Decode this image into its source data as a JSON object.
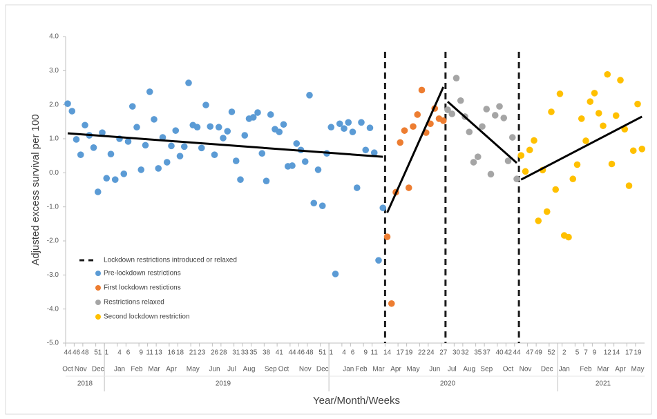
{
  "chart_data": {
    "type": "scatter",
    "x_label": "Year/Month/Weeks",
    "y_label": "Adjusted excess survival per 100",
    "categories": [
      "44",
      null,
      "46",
      null,
      "48",
      null,
      null,
      "51",
      null,
      "1",
      null,
      null,
      "4",
      null,
      "6",
      null,
      null,
      "9",
      null,
      "11",
      null,
      "13",
      null,
      null,
      "16",
      null,
      "18",
      null,
      null,
      "21",
      null,
      "23",
      null,
      null,
      "26",
      null,
      "28",
      null,
      null,
      "31",
      null,
      "33",
      null,
      "35",
      null,
      null,
      "38",
      null,
      null,
      "41",
      null,
      null,
      "44",
      null,
      "46",
      null,
      "48",
      null,
      null,
      "51",
      null,
      "1",
      null,
      null,
      "4",
      null,
      "6",
      null,
      null,
      "9",
      null,
      "11",
      null,
      null,
      "14",
      null,
      null,
      "17",
      null,
      "19",
      null,
      null,
      "22",
      null,
      "24",
      null,
      null,
      "27",
      null,
      null,
      "30",
      null,
      "32",
      null,
      null,
      "35",
      null,
      "37",
      null,
      null,
      "40",
      null,
      "42",
      null,
      "44",
      null,
      null,
      "47",
      null,
      "49",
      null,
      null,
      "52",
      null,
      null,
      "2",
      null,
      null,
      "5",
      null,
      "7",
      null,
      "9",
      null,
      null,
      "12",
      null,
      "14",
      null,
      null,
      "17",
      null,
      "19",
      null
    ],
    "months": [
      "Oct",
      "Nov",
      "Dec",
      "Jan",
      "Feb",
      "Mar",
      "Apr",
      "May",
      "Jun",
      "Jul",
      "Aug",
      "Sep",
      "Oct",
      "Nov",
      "Dec",
      "Jan",
      "Feb",
      "Mar",
      "Apr",
      "May",
      "Jun",
      "Jul",
      "Aug",
      "Sep",
      "Oct",
      "Nov",
      "Dec",
      "Jan",
      "Feb",
      "Mar",
      "Apr",
      "May"
    ],
    "years": [
      "2018",
      "2019",
      "2020",
      "2021"
    ],
    "ylim": [
      -5,
      4
    ],
    "yticks": [
      {
        "value": 4,
        "label": "4.0"
      },
      {
        "value": 3,
        "label": "3.0"
      },
      {
        "value": 2,
        "label": "2.0"
      },
      {
        "value": 1,
        "label": "1.0"
      },
      {
        "value": 0,
        "label": "0.0"
      },
      {
        "value": -1,
        "label": "-1.0"
      },
      {
        "value": -2,
        "label": "-2.0"
      },
      {
        "value": -3,
        "label": "-3.0"
      },
      {
        "value": -4,
        "label": "-4.0"
      },
      {
        "value": -5,
        "label": "-5.0"
      }
    ],
    "grid": false,
    "legend": "lower left",
    "marker_label": "Lockdown restrictions introduced or relaxed",
    "series": [
      {
        "name": "Pre-lockdown restrictions",
        "color": "#5b9bd5",
        "trend": [
          1.16,
          0.47
        ],
        "values": [
          2.03,
          1.81,
          0.98,
          0.53,
          1.4,
          1.1,
          0.74,
          -0.56,
          1.18,
          -0.16,
          0.55,
          -0.2,
          1.0,
          -0.03,
          0.92,
          1.95,
          1.34,
          0.09,
          0.81,
          2.38,
          1.57,
          0.13,
          1.04,
          0.31,
          0.79,
          1.24,
          0.49,
          0.77,
          2.64,
          1.4,
          1.34,
          0.73,
          1.99,
          1.36,
          0.53,
          1.34,
          1.02,
          1.22,
          1.79,
          0.35,
          -0.2,
          1.1,
          1.59,
          1.63,
          1.77,
          0.57,
          -0.24,
          1.71,
          1.28,
          1.2,
          1.42,
          0.19,
          0.21,
          0.86,
          0.67,
          0.33,
          2.28,
          -0.89,
          0.09,
          -0.97,
          0.57,
          1.34,
          -2.97,
          1.44,
          1.3,
          1.48,
          1.2,
          -0.44,
          1.48,
          0.67,
          1.32,
          0.59,
          -2.57,
          -1.03,
          null,
          null,
          null,
          null,
          null,
          null,
          null,
          null,
          null,
          null,
          null,
          null,
          null,
          null,
          null,
          null,
          null,
          null,
          null,
          null,
          null,
          null,
          null,
          null,
          null,
          null,
          null,
          null,
          null,
          null,
          null,
          null,
          null,
          null,
          null,
          null,
          null,
          null,
          null,
          null,
          null,
          null,
          null,
          null,
          null,
          null,
          null,
          null,
          null,
          null,
          null,
          null,
          null,
          null,
          null,
          null,
          null,
          null,
          null,
          null
        ]
      },
      {
        "name": "First lockdown restictions",
        "color": "#ed7d31",
        "trend": [
          -1.17,
          2.52
        ],
        "values": [
          null,
          null,
          null,
          null,
          null,
          null,
          null,
          null,
          null,
          null,
          null,
          null,
          null,
          null,
          null,
          null,
          null,
          null,
          null,
          null,
          null,
          null,
          null,
          null,
          null,
          null,
          null,
          null,
          null,
          null,
          null,
          null,
          null,
          null,
          null,
          null,
          null,
          null,
          null,
          null,
          null,
          null,
          null,
          null,
          null,
          null,
          null,
          null,
          null,
          null,
          null,
          null,
          null,
          null,
          null,
          null,
          null,
          null,
          null,
          null,
          null,
          null,
          null,
          null,
          null,
          null,
          null,
          null,
          null,
          null,
          null,
          null,
          null,
          null,
          -1.88,
          -3.84,
          -0.57,
          0.89,
          1.24,
          -0.44,
          1.36,
          1.71,
          2.43,
          1.18,
          1.44,
          1.89,
          1.59,
          1.53,
          null,
          null,
          null,
          null,
          null,
          null,
          null,
          null,
          null,
          null,
          null,
          null,
          null,
          null,
          null,
          null,
          null,
          null,
          null,
          null,
          null,
          null,
          null,
          null,
          null,
          null,
          null,
          null,
          null,
          null,
          null,
          null,
          null,
          null,
          null,
          null,
          null,
          null,
          null,
          null,
          null,
          null,
          null,
          null,
          null,
          null
        ]
      },
      {
        "name": "Restrictions relaxed",
        "color": "#a5a5a5",
        "trend": [
          2.09,
          0.29
        ],
        "values": [
          null,
          null,
          null,
          null,
          null,
          null,
          null,
          null,
          null,
          null,
          null,
          null,
          null,
          null,
          null,
          null,
          null,
          null,
          null,
          null,
          null,
          null,
          null,
          null,
          null,
          null,
          null,
          null,
          null,
          null,
          null,
          null,
          null,
          null,
          null,
          null,
          null,
          null,
          null,
          null,
          null,
          null,
          null,
          null,
          null,
          null,
          null,
          null,
          null,
          null,
          null,
          null,
          null,
          null,
          null,
          null,
          null,
          null,
          null,
          null,
          null,
          null,
          null,
          null,
          null,
          null,
          null,
          null,
          null,
          null,
          null,
          null,
          null,
          null,
          null,
          null,
          null,
          null,
          null,
          null,
          null,
          null,
          null,
          null,
          null,
          null,
          null,
          null,
          1.85,
          1.73,
          2.78,
          2.12,
          1.65,
          1.2,
          0.31,
          0.47,
          1.36,
          1.87,
          -0.04,
          1.69,
          1.95,
          1.61,
          0.35,
          1.04,
          -0.18,
          null,
          null,
          null,
          null,
          null,
          null,
          null,
          null,
          null,
          null,
          null,
          null,
          null,
          null,
          null,
          null,
          null,
          null,
          null,
          null,
          null,
          null,
          null,
          null,
          null,
          null,
          null,
          null,
          null
        ]
      },
      {
        "name": "Second lockdown restriction",
        "color": "#ffc000",
        "trend": [
          -0.2,
          1.65
        ],
        "values": [
          null,
          null,
          null,
          null,
          null,
          null,
          null,
          null,
          null,
          null,
          null,
          null,
          null,
          null,
          null,
          null,
          null,
          null,
          null,
          null,
          null,
          null,
          null,
          null,
          null,
          null,
          null,
          null,
          null,
          null,
          null,
          null,
          null,
          null,
          null,
          null,
          null,
          null,
          null,
          null,
          null,
          null,
          null,
          null,
          null,
          null,
          null,
          null,
          null,
          null,
          null,
          null,
          null,
          null,
          null,
          null,
          null,
          null,
          null,
          null,
          null,
          null,
          null,
          null,
          null,
          null,
          null,
          null,
          null,
          null,
          null,
          null,
          null,
          null,
          null,
          null,
          null,
          null,
          null,
          null,
          null,
          null,
          null,
          null,
          null,
          null,
          null,
          null,
          null,
          null,
          null,
          null,
          null,
          null,
          null,
          null,
          null,
          null,
          null,
          null,
          null,
          null,
          null,
          null,
          null,
          0.51,
          0.04,
          0.67,
          0.95,
          -1.41,
          0.08,
          -1.14,
          1.79,
          -0.49,
          2.32,
          -1.84,
          -1.89,
          -0.18,
          0.24,
          1.59,
          0.94,
          2.09,
          2.34,
          1.75,
          1.38,
          2.89,
          0.26,
          1.68,
          2.72,
          1.28,
          -0.38,
          0.65,
          2.02,
          0.7
        ]
      }
    ]
  }
}
